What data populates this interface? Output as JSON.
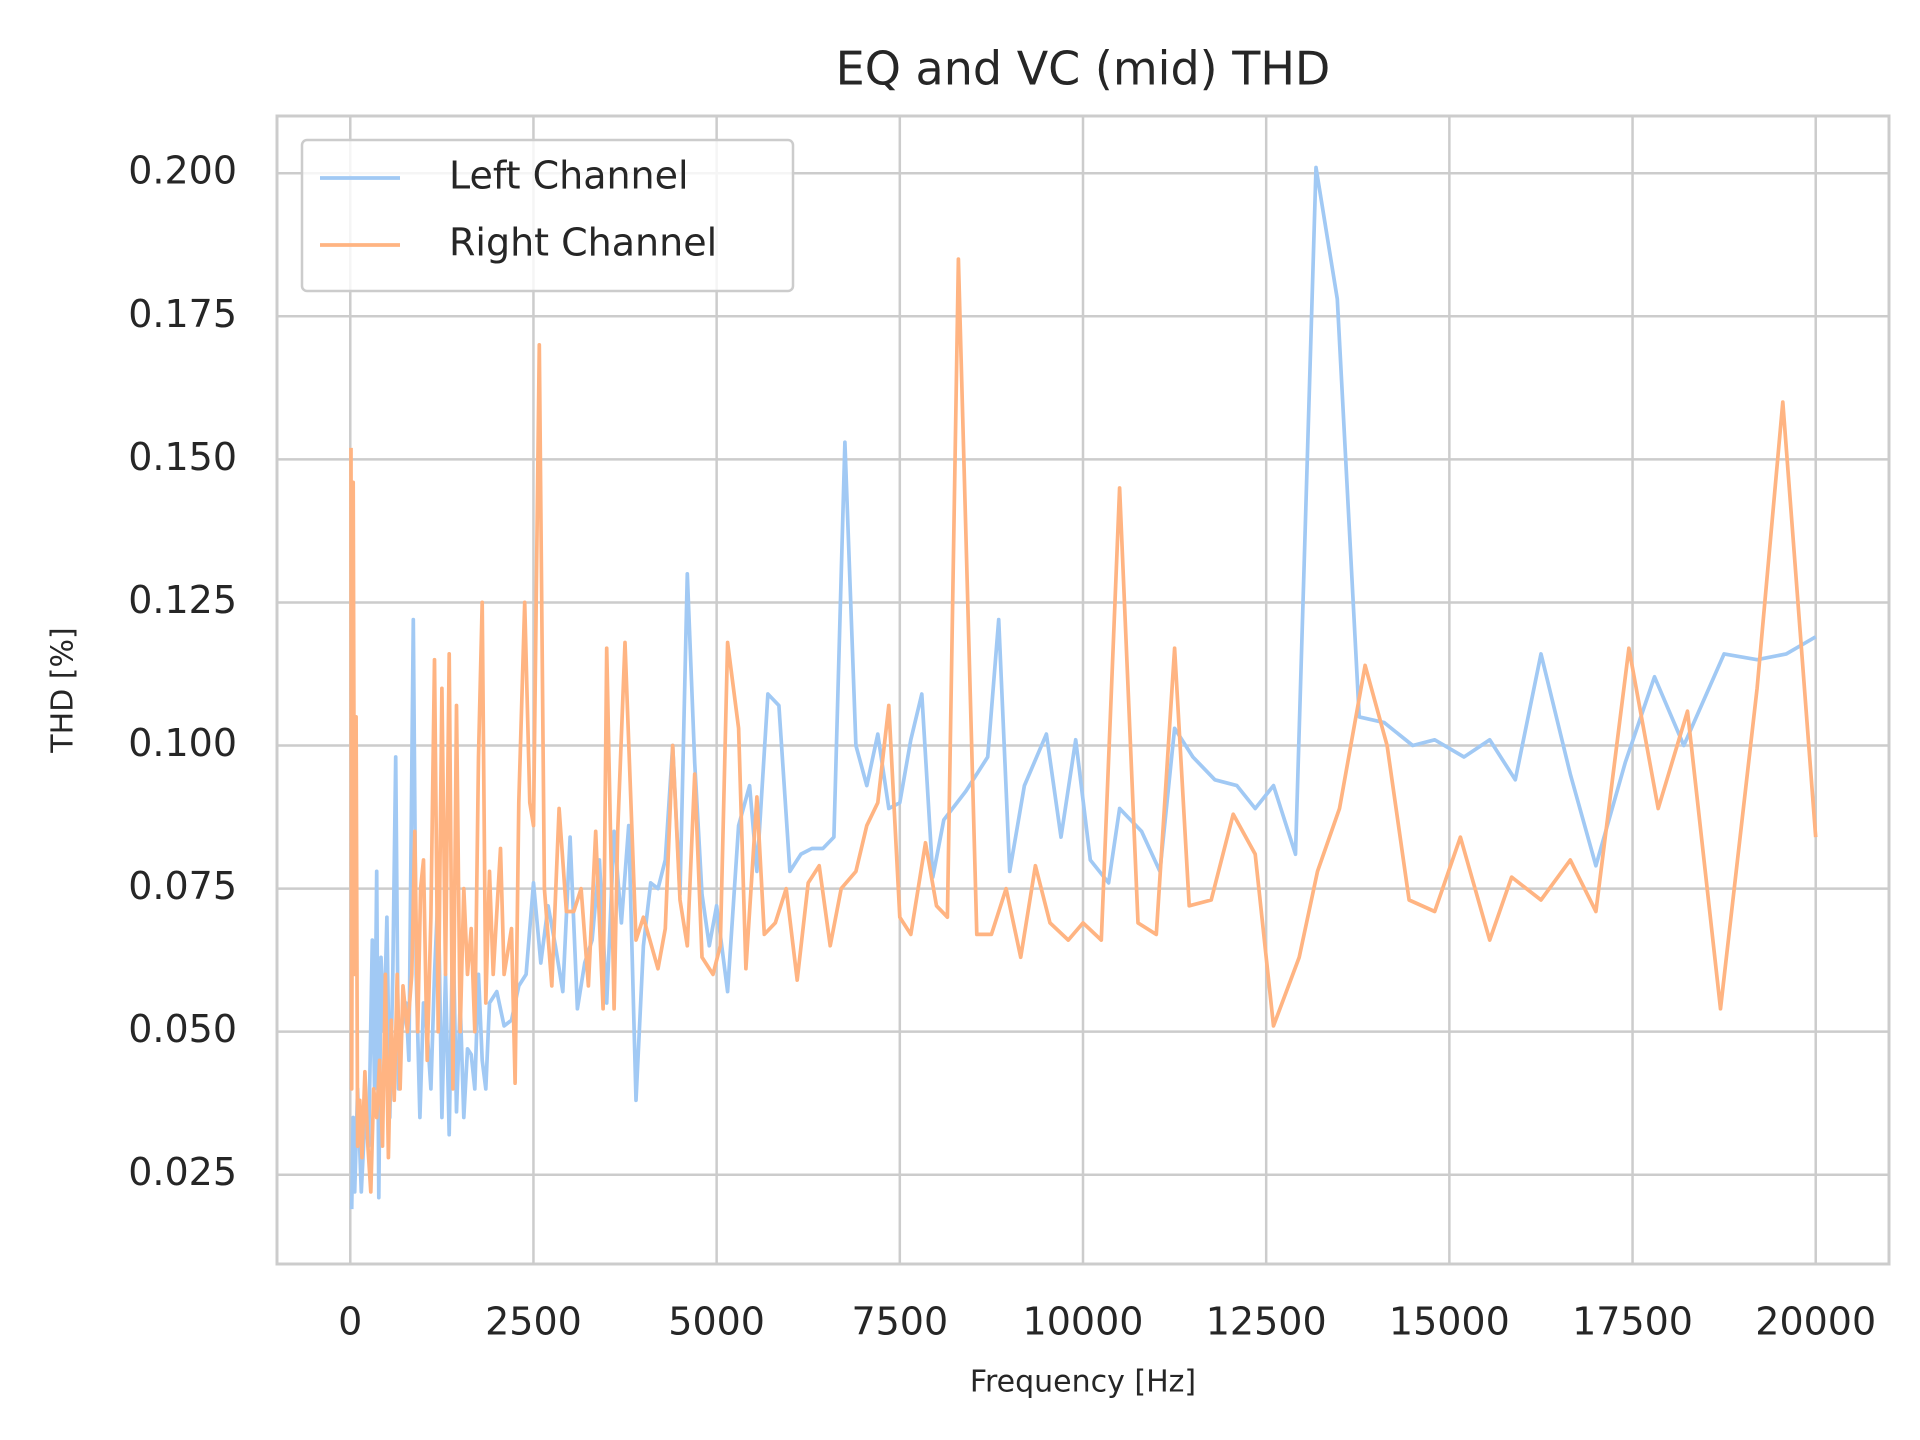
{
  "chart_data": {
    "type": "line",
    "title": "EQ and VC (mid) THD",
    "x_label": "Frequency [Hz]",
    "y_label": "THD [%]",
    "xlim": [
      -1000,
      21000
    ],
    "ylim": [
      0.0094,
      0.21
    ],
    "xticks": [
      0,
      2500,
      5000,
      7500,
      10000,
      12500,
      15000,
      17500,
      20000
    ],
    "yticks": [
      0.025,
      {
        "value": 0.05,
        "label": "0.050"
      },
      0.075,
      {
        "value": 0.1,
        "label": "0.100"
      },
      0.125,
      {
        "value": 0.15,
        "label": "0.150"
      },
      0.175,
      {
        "value": 0.2,
        "label": "0.200"
      }
    ],
    "grid": true,
    "legend": "upper left",
    "series": [
      {
        "name": "Left Channel",
        "color": "#a1c9f4",
        "x": [
          20,
          40,
          60,
          100,
          150,
          200,
          250,
          300,
          330,
          360,
          390,
          420,
          460,
          500,
          540,
          580,
          620,
          660,
          700,
          760,
          800,
          860,
          900,
          950,
          1000,
          1050,
          1100,
          1150,
          1200,
          1250,
          1300,
          1350,
          1400,
          1450,
          1500,
          1550,
          1600,
          1650,
          1700,
          1750,
          1800,
          1850,
          1900,
          2000,
          2100,
          2200,
          2300,
          2400,
          2500,
          2600,
          2700,
          2800,
          2900,
          3000,
          3100,
          3200,
          3300,
          3400,
          3500,
          3600,
          3700,
          3800,
          3900,
          4000,
          4100,
          4200,
          4300,
          4400,
          4500,
          4600,
          4700,
          4800,
          4900,
          5000,
          5150,
          5300,
          5450,
          5550,
          5700,
          5850,
          6000,
          6150,
          6300,
          6450,
          6600,
          6750,
          6900,
          7050,
          7200,
          7350,
          7500,
          7650,
          7800,
          7950,
          8100,
          8400,
          8700,
          8850,
          9000,
          9200,
          9500,
          9700,
          9900,
          10100,
          10350,
          10500,
          10800,
          11050,
          11250,
          11500,
          11800,
          12100,
          12350,
          12600,
          12900,
          13180,
          13470,
          13770,
          14110,
          14500,
          14800,
          15200,
          15550,
          15900,
          16250,
          16650,
          17000,
          17400,
          17800,
          18200,
          18750,
          19200,
          19600,
          20000
        ],
        "values": [
          0.019,
          0.035,
          0.022,
          0.04,
          0.022,
          0.035,
          0.03,
          0.066,
          0.04,
          0.078,
          0.021,
          0.063,
          0.05,
          0.07,
          0.035,
          0.06,
          0.098,
          0.04,
          0.05,
          0.055,
          0.045,
          0.122,
          0.06,
          0.035,
          0.055,
          0.05,
          0.04,
          0.06,
          0.075,
          0.035,
          0.06,
          0.032,
          0.07,
          0.036,
          0.055,
          0.035,
          0.047,
          0.046,
          0.04,
          0.06,
          0.045,
          0.04,
          0.055,
          0.057,
          0.051,
          0.052,
          0.058,
          0.06,
          0.076,
          0.062,
          0.072,
          0.065,
          0.057,
          0.084,
          0.054,
          0.062,
          0.066,
          0.08,
          0.055,
          0.085,
          0.069,
          0.086,
          0.038,
          0.065,
          0.076,
          0.075,
          0.08,
          0.1,
          0.074,
          0.13,
          0.097,
          0.074,
          0.065,
          0.072,
          0.057,
          0.086,
          0.093,
          0.078,
          0.109,
          0.107,
          0.078,
          0.081,
          0.082,
          0.082,
          0.084,
          0.153,
          0.1,
          0.093,
          0.102,
          0.089,
          0.09,
          0.101,
          0.109,
          0.077,
          0.087,
          0.092,
          0.098,
          0.122,
          0.078,
          0.093,
          0.102,
          0.084,
          0.101,
          0.08,
          0.076,
          0.089,
          0.085,
          0.078,
          0.103,
          0.098,
          0.094,
          0.093,
          0.089,
          0.093,
          0.081,
          0.201,
          0.178,
          0.105,
          0.104,
          0.1,
          0.101,
          0.098,
          0.101,
          0.094,
          0.116,
          0.095,
          0.079,
          0.097,
          0.112,
          0.1,
          0.116,
          0.115,
          0.116,
          0.119
        ]
      },
      {
        "name": "Right Channel",
        "color": "#ffb482",
        "x": [
          10,
          20,
          40,
          60,
          80,
          100,
          130,
          160,
          200,
          240,
          280,
          320,
          360,
          400,
          440,
          480,
          520,
          560,
          600,
          640,
          680,
          720,
          780,
          840,
          880,
          920,
          960,
          1000,
          1050,
          1100,
          1150,
          1200,
          1250,
          1300,
          1350,
          1400,
          1450,
          1500,
          1550,
          1600,
          1650,
          1700,
          1750,
          1800,
          1850,
          1900,
          1950,
          2050,
          2100,
          2200,
          2250,
          2300,
          2380,
          2450,
          2500,
          2580,
          2650,
          2750,
          2850,
          2950,
          3050,
          3150,
          3250,
          3350,
          3450,
          3500,
          3600,
          3650,
          3750,
          3900,
          4000,
          4200,
          4300,
          4400,
          4500,
          4600,
          4700,
          4800,
          4950,
          5050,
          5150,
          5300,
          5400,
          5550,
          5650,
          5800,
          5950,
          6100,
          6250,
          6400,
          6550,
          6700,
          6900,
          7050,
          7200,
          7350,
          7500,
          7650,
          7850,
          8000,
          8150,
          8300,
          8550,
          8750,
          8950,
          9150,
          9350,
          9550,
          9800,
          10000,
          10250,
          10500,
          10750,
          11000,
          11250,
          11450,
          11750,
          12050,
          12350,
          12600,
          12950,
          13200,
          13500,
          13850,
          14150,
          14450,
          14800,
          15150,
          15550,
          15850,
          16250,
          16650,
          17000,
          17450,
          17850,
          18250,
          18700,
          19200,
          19550,
          20000
        ],
        "values": [
          0.152,
          0.04,
          0.146,
          0.06,
          0.105,
          0.03,
          0.038,
          0.028,
          0.043,
          0.03,
          0.022,
          0.04,
          0.035,
          0.045,
          0.03,
          0.06,
          0.028,
          0.052,
          0.038,
          0.06,
          0.04,
          0.058,
          0.05,
          0.06,
          0.085,
          0.05,
          0.075,
          0.08,
          0.045,
          0.07,
          0.115,
          0.05,
          0.11,
          0.06,
          0.116,
          0.04,
          0.107,
          0.05,
          0.075,
          0.06,
          0.068,
          0.05,
          0.098,
          0.125,
          0.055,
          0.078,
          0.06,
          0.082,
          0.06,
          0.068,
          0.041,
          0.09,
          0.125,
          0.09,
          0.086,
          0.17,
          0.075,
          0.058,
          0.089,
          0.071,
          0.071,
          0.075,
          0.058,
          0.085,
          0.054,
          0.117,
          0.054,
          0.085,
          0.118,
          0.066,
          0.07,
          0.061,
          0.068,
          0.1,
          0.073,
          0.065,
          0.095,
          0.063,
          0.06,
          0.065,
          0.118,
          0.103,
          0.061,
          0.091,
          0.067,
          0.069,
          0.075,
          0.059,
          0.076,
          0.079,
          0.065,
          0.075,
          0.078,
          0.086,
          0.09,
          0.107,
          0.07,
          0.067,
          0.083,
          0.072,
          0.07,
          0.185,
          0.067,
          0.067,
          0.075,
          0.063,
          0.079,
          0.069,
          0.066,
          0.069,
          0.066,
          0.145,
          0.069,
          0.067,
          0.117,
          0.072,
          0.073,
          0.088,
          0.081,
          0.051,
          0.063,
          0.078,
          0.089,
          0.114,
          0.1,
          0.073,
          0.071,
          0.084,
          0.066,
          0.077,
          0.073,
          0.08,
          0.071,
          0.117,
          0.089,
          0.106,
          0.054,
          0.11,
          0.16,
          0.084
        ]
      }
    ]
  }
}
